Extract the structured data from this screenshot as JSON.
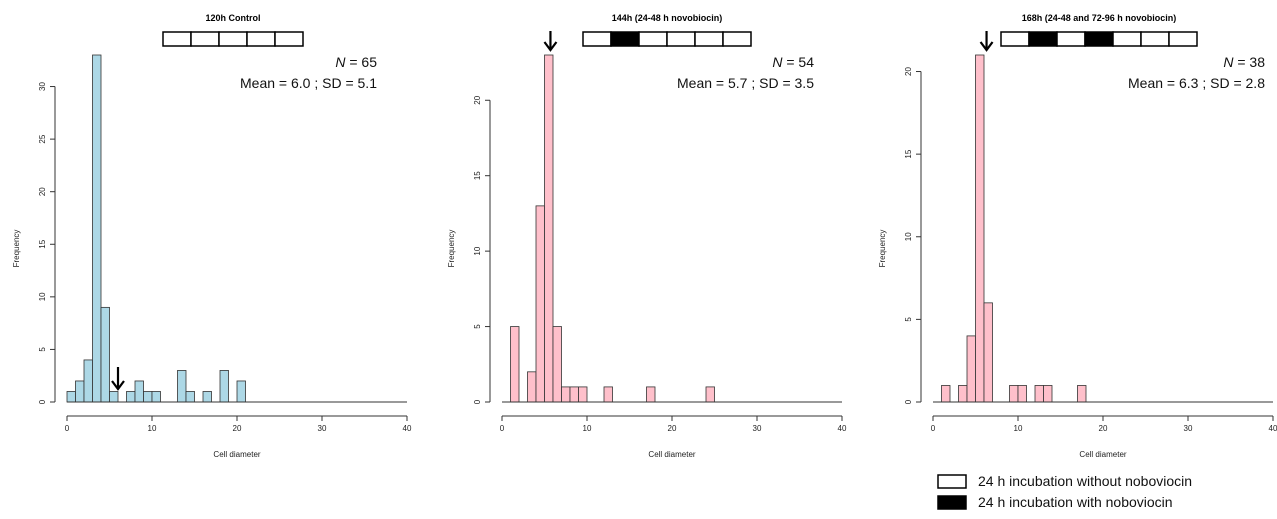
{
  "chart_data": [
    {
      "type": "bar",
      "title": "120h Control",
      "xlabel": "Cell diameter",
      "ylabel": "Frequency",
      "xlim": [
        0,
        40
      ],
      "ylim": [
        0,
        33
      ],
      "x_ticks": [
        "0",
        "10",
        "20",
        "30",
        "40"
      ],
      "y_ticks": [
        "0",
        "5",
        "10",
        "15",
        "20",
        "25",
        "30"
      ],
      "bin_width": 1,
      "bins": [
        {
          "x0": 0,
          "count": 1
        },
        {
          "x0": 1,
          "count": 2
        },
        {
          "x0": 2,
          "count": 4
        },
        {
          "x0": 3,
          "count": 33
        },
        {
          "x0": 4,
          "count": 9
        },
        {
          "x0": 5,
          "count": 1
        },
        {
          "x0": 7,
          "count": 1
        },
        {
          "x0": 8,
          "count": 2
        },
        {
          "x0": 9,
          "count": 1
        },
        {
          "x0": 10,
          "count": 1
        },
        {
          "x0": 13,
          "count": 3
        },
        {
          "x0": 14,
          "count": 1
        },
        {
          "x0": 16,
          "count": 1
        },
        {
          "x0": 18,
          "count": 3
        },
        {
          "x0": 20,
          "count": 2
        }
      ],
      "color": "#add8e6",
      "arrow_x": 6.0,
      "schedule": [
        false,
        false,
        false,
        false,
        false
      ],
      "n_label": "N",
      "n_value": "= 65",
      "stats_text": "Mean = 6.0 ; SD = 5.1"
    },
    {
      "type": "bar",
      "title": "144h (24-48 h novobiocin)",
      "xlabel": "Cell diameter",
      "ylabel": "Frequency",
      "xlim": [
        0,
        40
      ],
      "ylim": [
        0,
        23
      ],
      "x_ticks": [
        "0",
        "10",
        "20",
        "30",
        "40"
      ],
      "y_ticks": [
        "0",
        "5",
        "10",
        "15",
        "20"
      ],
      "bin_width": 1,
      "bins": [
        {
          "x0": 1,
          "count": 5
        },
        {
          "x0": 3,
          "count": 2
        },
        {
          "x0": 4,
          "count": 13
        },
        {
          "x0": 5,
          "count": 23
        },
        {
          "x0": 6,
          "count": 5
        },
        {
          "x0": 7,
          "count": 1
        },
        {
          "x0": 8,
          "count": 1
        },
        {
          "x0": 9,
          "count": 1
        },
        {
          "x0": 12,
          "count": 1
        },
        {
          "x0": 17,
          "count": 1
        },
        {
          "x0": 24,
          "count": 1
        }
      ],
      "color": "#ffc0cb",
      "arrow_x": 5.7,
      "schedule": [
        false,
        true,
        false,
        false,
        false,
        false
      ],
      "n_label": "N",
      "n_value": "= 54",
      "stats_text": "Mean = 5.7 ; SD = 3.5"
    },
    {
      "type": "bar",
      "title": "168h (24-48 and 72-96 h novobiocin)",
      "xlabel": "Cell diameter",
      "ylabel": "Frequency",
      "xlim": [
        0,
        40
      ],
      "ylim": [
        0,
        21
      ],
      "x_ticks": [
        "0",
        "10",
        "20",
        "30",
        "40"
      ],
      "y_ticks": [
        "0",
        "5",
        "10",
        "15",
        "20"
      ],
      "bin_width": 1,
      "bins": [
        {
          "x0": 1,
          "count": 1
        },
        {
          "x0": 3,
          "count": 1
        },
        {
          "x0": 4,
          "count": 4
        },
        {
          "x0": 5,
          "count": 21
        },
        {
          "x0": 6,
          "count": 6
        },
        {
          "x0": 9,
          "count": 1
        },
        {
          "x0": 10,
          "count": 1
        },
        {
          "x0": 12,
          "count": 1
        },
        {
          "x0": 13,
          "count": 1
        },
        {
          "x0": 17,
          "count": 1
        }
      ],
      "color": "#ffc0cb",
      "arrow_x": 6.3,
      "schedule": [
        false,
        true,
        false,
        true,
        false,
        false,
        false
      ],
      "n_label": "N",
      "n_value": "= 38",
      "stats_text": "Mean = 6.3 ; SD = 2.8"
    }
  ],
  "legend": {
    "items": [
      {
        "label": "24 h incubation without noboviocin",
        "fill": "#ffffff"
      },
      {
        "label": "24 h incubation with noboviocin",
        "fill": "#000000"
      }
    ]
  }
}
